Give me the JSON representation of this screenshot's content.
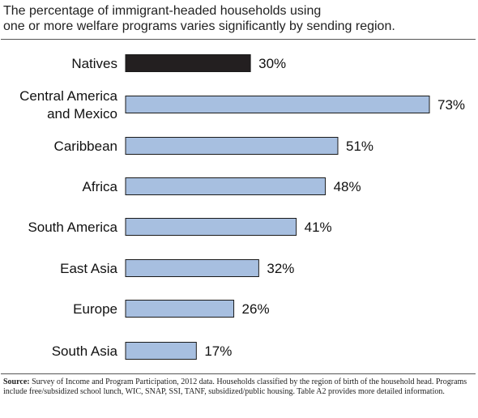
{
  "title": {
    "line1": "The percentage of immigrant-headed households using",
    "line2": "one or more welfare programs varies significantly by sending region."
  },
  "colors": {
    "highlight": "#231f20",
    "bar": "#a7bfe0",
    "bar_stroke": "#1a1a1a"
  },
  "source": {
    "label": "Source:",
    "text": "Survey of Income and Program Participation, 2012 data. Households classified by the region of birth of the household head. Programs include free/subsidized school lunch, WIC, SNAP, SSI, TANF, subsidized/public housing. Table A2 provides more detailed information."
  },
  "chart_data": {
    "type": "bar",
    "orientation": "horizontal",
    "categories": [
      [
        "Natives"
      ],
      [
        "Central America",
        "and Mexico"
      ],
      [
        "Caribbean"
      ],
      [
        "Africa"
      ],
      [
        "South America"
      ],
      [
        "East Asia"
      ],
      [
        "Europe"
      ],
      [
        "South Asia"
      ]
    ],
    "values": [
      30,
      73,
      51,
      48,
      41,
      32,
      26,
      17
    ],
    "value_labels": [
      "30%",
      "73%",
      "51%",
      "48%",
      "41%",
      "32%",
      "26%",
      "17%"
    ],
    "highlight_index": 0,
    "xlim": [
      0,
      73
    ],
    "grid": false,
    "legend": "none"
  }
}
